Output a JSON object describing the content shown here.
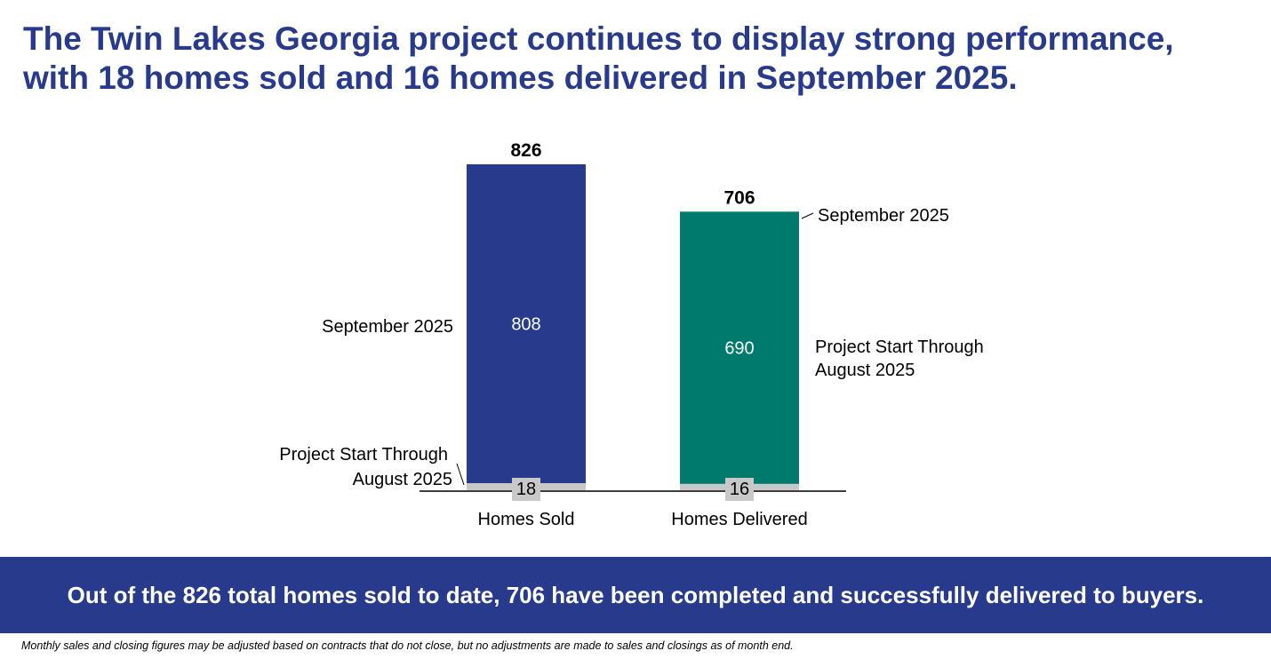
{
  "headline": {
    "line1": "The Twin Lakes Georgia project continues to display strong performance,",
    "line2": "with 18 homes sold and 16 homes delivered in September 2025."
  },
  "chart_data": {
    "type": "bar",
    "stacked": true,
    "categories": [
      "Homes Sold",
      "Homes Delivered"
    ],
    "series": [
      {
        "name": "September 2025",
        "values": [
          18,
          16
        ],
        "color": "#c8c8c8"
      },
      {
        "name": "Project Start Through August 2025",
        "values": [
          808,
          690
        ],
        "colors": [
          "#283a8c",
          "#017a6e"
        ]
      }
    ],
    "totals": [
      826,
      706
    ],
    "ylim": [
      0,
      826
    ],
    "title": "",
    "xlabel": "",
    "ylabel": "",
    "grid": false,
    "annotations": {
      "left_upper": "September 2025",
      "left_lower": [
        "Project Start Through",
        "August 2025"
      ],
      "right_upper": "September 2025",
      "right_lower": [
        "Project Start Through",
        "August 2025"
      ]
    }
  },
  "banner": {
    "text": "Out of the 826 total homes sold to date, 706 have been completed and successfully delivered to buyers."
  },
  "footnote": "Monthly sales and closing figures may be adjusted based on contracts that do not close, but no adjustments are made to sales and closings as of month end."
}
